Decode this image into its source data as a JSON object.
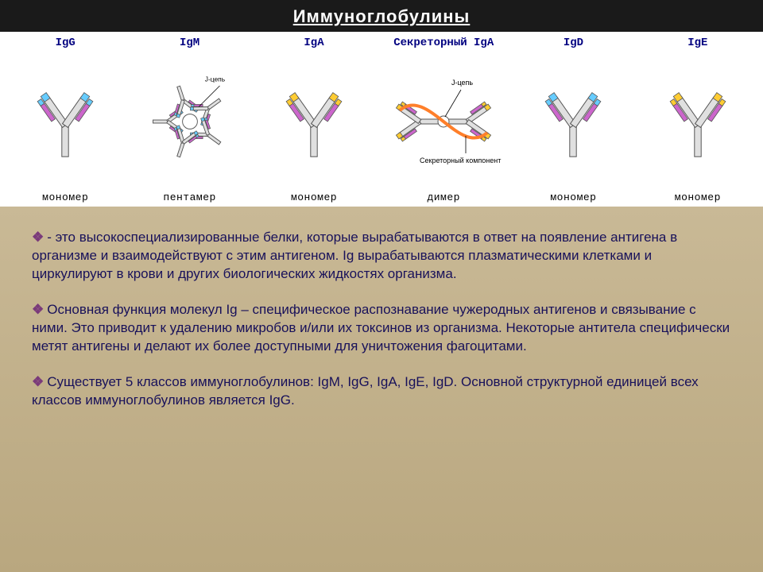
{
  "title": "Иммуноглобулины",
  "columns": [
    {
      "header": "IgG",
      "footer": "мономер",
      "type": "monomer",
      "tip": "#66ccff"
    },
    {
      "header": "IgM",
      "footer": "пентамер",
      "type": "pentamer",
      "tip": "#66ccff"
    },
    {
      "header": "IgA",
      "footer": "мономер",
      "type": "monomer",
      "tip": "#ffcc33"
    },
    {
      "header": "Секреторный IgA",
      "footer": "димер",
      "type": "dimer",
      "tip": "#ffcc33"
    },
    {
      "header": "IgD",
      "footer": "мономер",
      "type": "monomer",
      "tip": "#66ccff"
    },
    {
      "header": "IgE",
      "footer": "мономер",
      "type": "monomer",
      "tip": "#ffcc33"
    }
  ],
  "labels": {
    "jchain": "J-цепь",
    "secretory": "Секреторный компонент"
  },
  "paragraphs": [
    "- это высокоспециализированные белки, которые вырабатываются в ответ на появление антигена в организме и взаимодействуют с этим антигеном. Ig вырабатываются плазматическими клетками и циркулируют в крови и других биологических жидкостях организма.",
    "Основная функция молекул Ig – специфическое распознавание чужеродных антигенов и связывание с ними. Это приводит к удалению микробов и/или их токсинов из организма. Некоторые антитела специфически метят антигены и делают их более доступными для уничтожения фагоцитами.",
    "Существует 5 классов иммуноглобулинов: IgM, IgG, IgA, IgE, IgD. Основной структурной единицей всех классов иммуноглобулинов является IgG."
  ],
  "colors": {
    "heavy": "#e0e0e0",
    "heavy_stroke": "#555555",
    "light": "#cc66cc",
    "jchain": "#8a6ad1",
    "secretory": "#ff7f2a",
    "text": "#18115a",
    "bullet": "#7a3a7a",
    "panel_top": "#c9b996",
    "panel_bottom": "#b9a77f",
    "header_text": "#000080"
  }
}
